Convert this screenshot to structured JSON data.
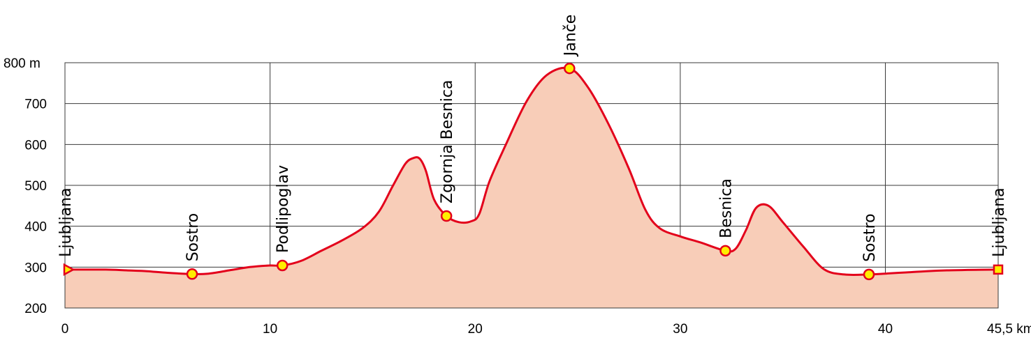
{
  "chart_data": {
    "type": "area",
    "title": "",
    "xlabel": "",
    "ylabel": "",
    "x_unit": "km",
    "y_unit": "m",
    "xlim": [
      0,
      45.5
    ],
    "ylim": [
      200,
      800
    ],
    "grid": true,
    "x_ticks": [
      0,
      10,
      20,
      30,
      40,
      45.5
    ],
    "x_tick_labels": [
      "0",
      "10",
      "20",
      "30",
      "40",
      "45,5 km"
    ],
    "y_ticks": [
      200,
      300,
      400,
      500,
      600,
      700,
      800
    ],
    "y_tick_labels": [
      "200",
      "300",
      "400",
      "500",
      "600",
      "700",
      "800 m"
    ],
    "colors": {
      "line": "#e3001b",
      "fill": "#f8cdb8",
      "marker_fill": "#ffee00",
      "grid": "#3a3a3a"
    },
    "series": [
      {
        "x": [
          0,
          1,
          2,
          3,
          4,
          5,
          6.2,
          7,
          8,
          9,
          10,
          10.6,
          11.5,
          12.5,
          13.5,
          14.5,
          15.3,
          16,
          16.6,
          17,
          17.3,
          17.6,
          18,
          18.6,
          19.2,
          19.8,
          20.2,
          20.7,
          21.5,
          22.5,
          23.5,
          24.6,
          25.5,
          26.5,
          27.5,
          28.3,
          29,
          30,
          31,
          32.2,
          32.7,
          33.2,
          33.7,
          34.3,
          35,
          36,
          37,
          38,
          39.2,
          40,
          41,
          42,
          43,
          44,
          45.5
        ],
        "y": [
          294,
          294,
          294,
          292,
          290,
          286,
          283,
          284,
          292,
          300,
          304,
          304,
          315,
          340,
          365,
          395,
          435,
          500,
          553,
          567,
          565,
          535,
          465,
          425,
          410,
          412,
          430,
          510,
          600,
          705,
          770,
          786,
          740,
          650,
          540,
          440,
          395,
          375,
          360,
          340,
          345,
          390,
          445,
          450,
          410,
          350,
          295,
          282,
          282,
          284,
          287,
          290,
          292,
          293,
          294
        ]
      }
    ],
    "waypoints": [
      {
        "name": "Ljubljana",
        "x": 0,
        "y": 294,
        "marker": "triangle"
      },
      {
        "name": "Sostro",
        "x": 6.2,
        "y": 283,
        "marker": "circle"
      },
      {
        "name": "Podlipoglav",
        "x": 10.6,
        "y": 304,
        "marker": "circle"
      },
      {
        "name": "Zgornja Besnica",
        "x": 18.6,
        "y": 425,
        "marker": "circle"
      },
      {
        "name": "Janče",
        "x": 24.6,
        "y": 786,
        "marker": "circle"
      },
      {
        "name": "Besnica",
        "x": 32.2,
        "y": 340,
        "marker": "circle"
      },
      {
        "name": "Sostro",
        "x": 39.2,
        "y": 282,
        "marker": "circle"
      },
      {
        "name": "Ljubljana",
        "x": 45.5,
        "y": 294,
        "marker": "square"
      }
    ]
  }
}
